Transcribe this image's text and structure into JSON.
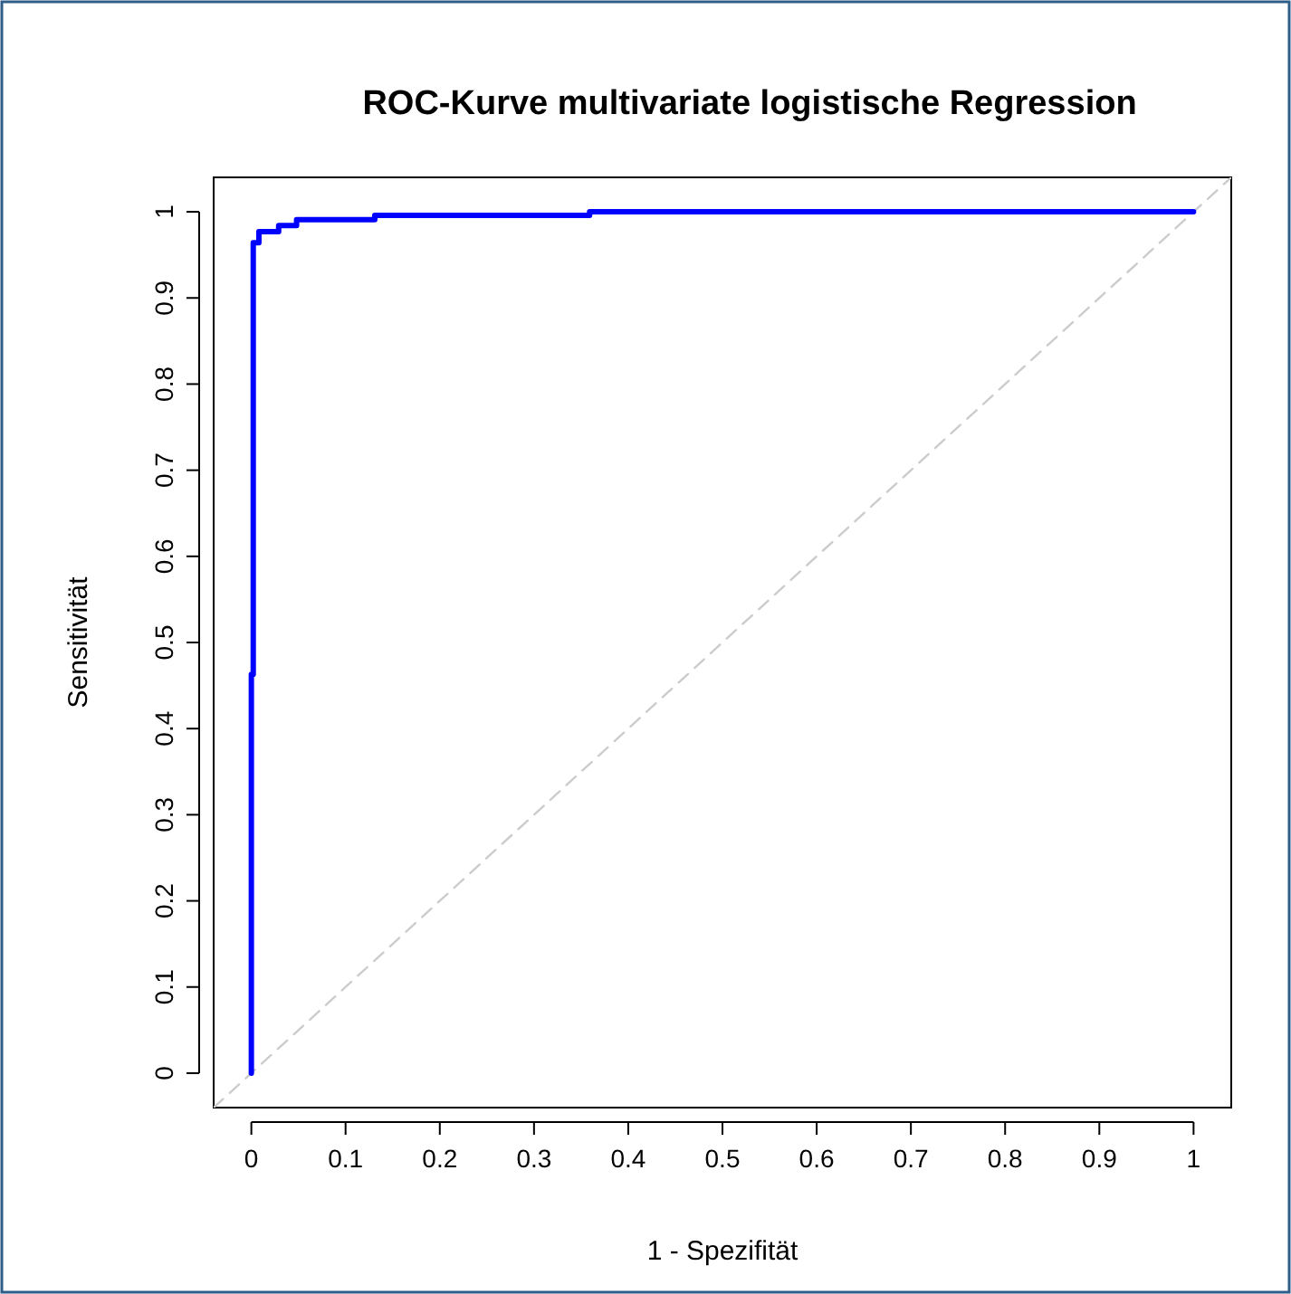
{
  "chart_data": {
    "type": "step",
    "title": "ROC-Kurve multivariate logistische Regression",
    "xlabel": "1 - Spezifität",
    "ylabel": "Sensitivität",
    "xlim": [
      -0.04,
      1.04
    ],
    "ylim": [
      -0.04,
      1.04
    ],
    "xticks": [
      0,
      0.1,
      0.2,
      0.3,
      0.4,
      0.5,
      0.6,
      0.7,
      0.8,
      0.9,
      1
    ],
    "yticks": [
      0,
      0.1,
      0.2,
      0.3,
      0.4,
      0.5,
      0.6,
      0.7,
      0.8,
      0.9,
      1
    ],
    "grid": false,
    "series": [
      {
        "color": "#0000ff",
        "line_style": "solid",
        "x": [
          0,
          0,
          0.002,
          0.002,
          0.008,
          0.008,
          0.029,
          0.029,
          0.048,
          0.048,
          0.131,
          0.131,
          0.359,
          0.359,
          1
        ],
        "values": [
          0,
          0.463,
          0.463,
          0.964,
          0.964,
          0.977,
          0.977,
          0.984,
          0.984,
          0.991,
          0.991,
          0.996,
          0.996,
          1,
          1
        ]
      },
      {
        "type": "line",
        "color": "#cccccc",
        "line_style": "dashed",
        "x": [
          -0.04,
          1.04
        ],
        "values": [
          -0.04,
          1.04
        ]
      }
    ]
  }
}
